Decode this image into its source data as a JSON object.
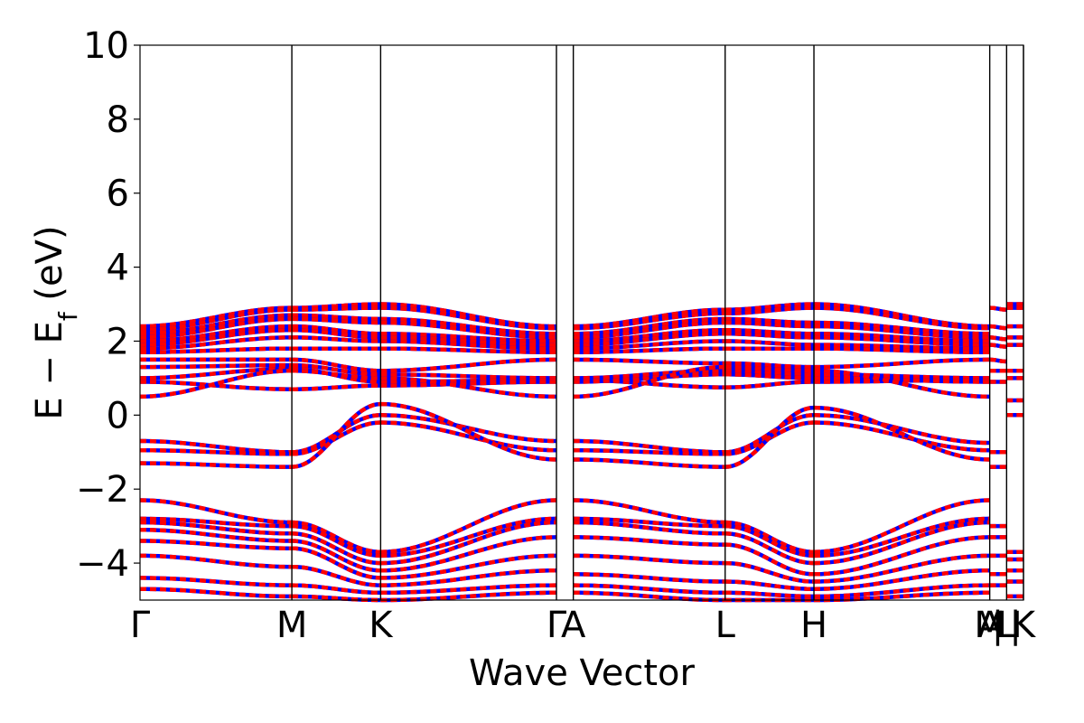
{
  "chart_data": {
    "type": "line",
    "xlabel": "Wave Vector",
    "ylabel": {
      "prefix": "E − E",
      "subscript": "f",
      "suffix": " (eV)"
    },
    "ylim": [
      -5,
      10
    ],
    "yticks": [
      -4,
      -2,
      0,
      2,
      4,
      6,
      8,
      10
    ],
    "ytick_labels": [
      "−4",
      "−2",
      "0",
      "2",
      "4",
      "6",
      "8",
      "10"
    ],
    "kpoints": [
      {
        "label": "Γ",
        "x": 0.0
      },
      {
        "label": "M",
        "x": 0.171
      },
      {
        "label": "K",
        "x": 0.271
      },
      {
        "label": "Γ",
        "x": 0.469
      },
      {
        "label": "A",
        "x": 0.488
      },
      {
        "label": "L",
        "x": 0.659
      },
      {
        "label": "H",
        "x": 0.759
      },
      {
        "label": "A",
        "x": 0.957
      },
      {
        "label": "M",
        "x": 0.957
      },
      {
        "label": "|",
        "x": 0.966
      },
      {
        "label": "L",
        "x": 0.976
      },
      {
        "label": "|",
        "x": 0.986
      },
      {
        "label": "K",
        "x": 0.995
      }
    ],
    "band_line_positions": [
      0.171,
      0.271,
      0.469,
      0.488,
      0.659,
      0.759,
      0.957,
      0.976,
      0.995
    ],
    "x_range": [
      0,
      0.995
    ],
    "series_colors": {
      "spin_up": "#0000ff",
      "spin_down": "#ff0000"
    },
    "segments": [
      {
        "x0": 0.0,
        "x1": 0.171,
        "bands": [
          [
            2.4,
            2.9
          ],
          [
            2.3,
            2.85
          ],
          [
            2.2,
            2.7
          ],
          [
            2.1,
            2.6
          ],
          [
            2.0,
            2.4
          ],
          [
            1.9,
            2.3
          ],
          [
            1.8,
            2.1
          ],
          [
            1.7,
            1.8
          ],
          [
            1.5,
            1.5
          ],
          [
            1.3,
            1.35
          ],
          [
            1.0,
            1.25
          ],
          [
            0.9,
            0.7
          ],
          [
            0.5,
            1.2
          ],
          [
            -0.7,
            -1.0
          ],
          [
            -0.95,
            -1.05
          ],
          [
            -1.3,
            -1.4
          ],
          [
            -2.3,
            -2.9
          ],
          [
            -2.8,
            -3.0
          ],
          [
            -2.9,
            -3.2
          ],
          [
            -3.1,
            -3.4
          ],
          [
            -3.4,
            -3.6
          ],
          [
            -3.8,
            -4.1
          ],
          [
            -4.4,
            -4.6
          ],
          [
            -4.7,
            -4.9
          ]
        ]
      },
      {
        "x0": 0.171,
        "x1": 0.271,
        "bands": [
          [
            2.9,
            3.0
          ],
          [
            2.85,
            2.9
          ],
          [
            2.7,
            2.6
          ],
          [
            2.6,
            2.5
          ],
          [
            2.4,
            2.2
          ],
          [
            2.3,
            2.1
          ],
          [
            2.1,
            2.0
          ],
          [
            1.8,
            1.8
          ],
          [
            1.5,
            1.2
          ],
          [
            1.35,
            1.1
          ],
          [
            1.25,
            0.9
          ],
          [
            0.7,
            0.8
          ],
          [
            1.2,
            1.0
          ],
          [
            -1.0,
            0.0
          ],
          [
            -1.05,
            -0.2
          ],
          [
            -1.4,
            0.3
          ],
          [
            -2.9,
            -3.7
          ],
          [
            -3.0,
            -3.8
          ],
          [
            -3.2,
            -4.0
          ],
          [
            -3.4,
            -4.2
          ],
          [
            -3.6,
            -4.4
          ],
          [
            -4.1,
            -4.6
          ],
          [
            -4.6,
            -4.8
          ],
          [
            -4.9,
            -5.0
          ]
        ]
      },
      {
        "x0": 0.271,
        "x1": 0.469,
        "bands": [
          [
            3.0,
            2.4
          ],
          [
            2.9,
            2.35
          ],
          [
            2.6,
            2.2
          ],
          [
            2.5,
            2.1
          ],
          [
            2.2,
            2.0
          ],
          [
            2.1,
            1.9
          ],
          [
            2.0,
            1.8
          ],
          [
            1.8,
            1.7
          ],
          [
            1.2,
            1.5
          ],
          [
            1.1,
            1.0
          ],
          [
            0.9,
            0.95
          ],
          [
            0.8,
            0.9
          ],
          [
            1.0,
            0.5
          ],
          [
            0.0,
            -0.7
          ],
          [
            -0.2,
            -0.95
          ],
          [
            0.3,
            -1.2
          ],
          [
            -3.7,
            -2.3
          ],
          [
            -3.8,
            -2.8
          ],
          [
            -4.0,
            -2.9
          ],
          [
            -4.2,
            -3.3
          ],
          [
            -4.4,
            -3.8
          ],
          [
            -4.6,
            -4.2
          ],
          [
            -4.8,
            -4.6
          ],
          [
            -5.0,
            -4.8
          ]
        ]
      },
      {
        "x0": 0.488,
        "x1": 0.659,
        "bands": [
          [
            2.4,
            2.85
          ],
          [
            2.35,
            2.75
          ],
          [
            2.2,
            2.6
          ],
          [
            2.1,
            2.5
          ],
          [
            2.0,
            2.3
          ],
          [
            1.9,
            2.2
          ],
          [
            1.8,
            2.0
          ],
          [
            1.7,
            1.8
          ],
          [
            1.5,
            1.4
          ],
          [
            1.0,
            1.2
          ],
          [
            0.95,
            0.75
          ],
          [
            0.9,
            1.1
          ],
          [
            0.5,
            1.3
          ],
          [
            -0.7,
            -1.0
          ],
          [
            -0.95,
            -1.05
          ],
          [
            -1.2,
            -1.4
          ],
          [
            -2.3,
            -2.9
          ],
          [
            -2.8,
            -3.0
          ],
          [
            -2.9,
            -3.2
          ],
          [
            -3.3,
            -3.5
          ],
          [
            -3.8,
            -4.0
          ],
          [
            -4.3,
            -4.5
          ],
          [
            -4.6,
            -4.8
          ],
          [
            -4.8,
            -5.0
          ]
        ]
      },
      {
        "x0": 0.659,
        "x1": 0.759,
        "bands": [
          [
            2.85,
            3.0
          ],
          [
            2.75,
            2.9
          ],
          [
            2.6,
            2.5
          ],
          [
            2.5,
            2.4
          ],
          [
            2.3,
            2.2
          ],
          [
            2.2,
            2.1
          ],
          [
            2.0,
            1.9
          ],
          [
            1.8,
            1.8
          ],
          [
            1.4,
            1.3
          ],
          [
            1.2,
            1.1
          ],
          [
            0.75,
            0.9
          ],
          [
            1.1,
            1.0
          ],
          [
            1.3,
            1.2
          ],
          [
            -1.0,
            0.0
          ],
          [
            -1.05,
            -0.2
          ],
          [
            -1.4,
            0.2
          ],
          [
            -2.9,
            -3.7
          ],
          [
            -3.0,
            -3.8
          ],
          [
            -3.2,
            -4.0
          ],
          [
            -3.5,
            -4.3
          ],
          [
            -4.0,
            -4.5
          ],
          [
            -4.5,
            -4.7
          ],
          [
            -4.8,
            -4.9
          ],
          [
            -5.0,
            -5.0
          ]
        ]
      },
      {
        "x0": 0.759,
        "x1": 0.957,
        "bands": [
          [
            3.0,
            2.4
          ],
          [
            2.9,
            2.35
          ],
          [
            2.5,
            2.2
          ],
          [
            2.4,
            2.1
          ],
          [
            2.2,
            2.0
          ],
          [
            2.1,
            1.9
          ],
          [
            1.9,
            1.8
          ],
          [
            1.8,
            1.7
          ],
          [
            1.3,
            1.5
          ],
          [
            1.1,
            1.0
          ],
          [
            0.9,
            0.95
          ],
          [
            1.0,
            0.9
          ],
          [
            1.2,
            0.5
          ],
          [
            0.0,
            -0.75
          ],
          [
            -0.2,
            -0.95
          ],
          [
            0.2,
            -1.2
          ],
          [
            -3.7,
            -2.3
          ],
          [
            -3.8,
            -2.8
          ],
          [
            -4.0,
            -2.9
          ],
          [
            -4.3,
            -3.3
          ],
          [
            -4.5,
            -3.8
          ],
          [
            -4.7,
            -4.2
          ],
          [
            -4.9,
            -4.6
          ],
          [
            -5.0,
            -4.8
          ]
        ]
      },
      {
        "x0": 0.957,
        "x1": 0.976,
        "bands": [
          [
            2.9,
            2.85
          ],
          [
            2.4,
            2.35
          ],
          [
            2.1,
            2.05
          ],
          [
            1.9,
            1.85
          ],
          [
            1.5,
            1.45
          ],
          [
            1.2,
            1.2
          ],
          [
            0.9,
            0.9
          ],
          [
            -1.0,
            -1.0
          ],
          [
            -1.4,
            -1.4
          ],
          [
            -3.0,
            -3.0
          ],
          [
            -3.3,
            -3.3
          ],
          [
            -3.8,
            -3.8
          ],
          [
            -4.3,
            -4.3
          ],
          [
            -4.6,
            -4.6
          ]
        ]
      },
      {
        "x0": 0.976,
        "x1": 0.995,
        "bands": [
          [
            3.0,
            3.0
          ],
          [
            2.9,
            2.9
          ],
          [
            2.4,
            2.4
          ],
          [
            2.1,
            2.1
          ],
          [
            1.9,
            1.9
          ],
          [
            1.2,
            1.2
          ],
          [
            1.0,
            1.0
          ],
          [
            0.4,
            0.4
          ],
          [
            0.0,
            0.0
          ],
          [
            -3.7,
            -3.7
          ],
          [
            -3.9,
            -3.9
          ],
          [
            -4.2,
            -4.2
          ],
          [
            -4.5,
            -4.5
          ],
          [
            -4.9,
            -4.9
          ]
        ]
      }
    ]
  }
}
